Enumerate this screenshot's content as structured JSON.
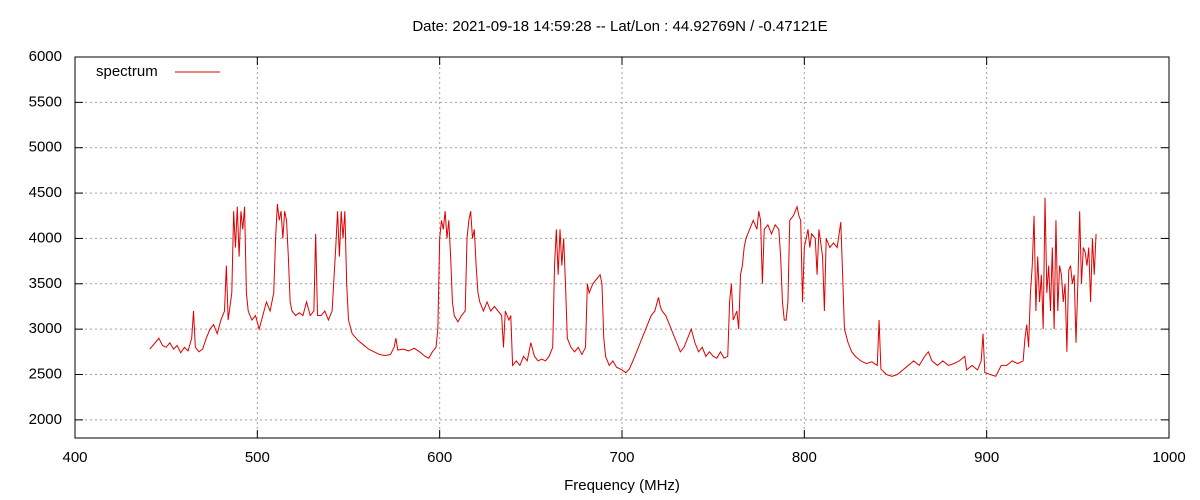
{
  "chart_data": {
    "type": "line",
    "title": "Date: 2021-09-18 14:59:28  --  Lat/Lon : 44.92769N / -0.47121E",
    "x_label": "Frequency (MHz)",
    "xlim": [
      400,
      1000
    ],
    "xticks": [
      400,
      500,
      600,
      700,
      800,
      900,
      1000
    ],
    "ylim": [
      1800,
      6000
    ],
    "yticks": [
      2000,
      2500,
      3000,
      3500,
      4000,
      4500,
      5000,
      5500,
      6000
    ],
    "grid": true,
    "legend": "top-left",
    "x": [
      441,
      444,
      446,
      448,
      450,
      452,
      454,
      456,
      458,
      460,
      462,
      464,
      465,
      466,
      468,
      470,
      472,
      474,
      476,
      478,
      480,
      482,
      483,
      484,
      486,
      487,
      488,
      489,
      490,
      491,
      492,
      493,
      494,
      495,
      497,
      499,
      501,
      503,
      505,
      507,
      509,
      510,
      511,
      512,
      513,
      514,
      515,
      516,
      517,
      518,
      519,
      521,
      523,
      525,
      527,
      529,
      531,
      532,
      533,
      535,
      537,
      539,
      541,
      543,
      544,
      545,
      546,
      547,
      548,
      549,
      550,
      552,
      555,
      558,
      561,
      564,
      567,
      570,
      573,
      575,
      576,
      577,
      580,
      583,
      586,
      589,
      592,
      594,
      596,
      598,
      599,
      600,
      601,
      602,
      603,
      604,
      605,
      606,
      607,
      608,
      610,
      612,
      614,
      615,
      616,
      617,
      618,
      619,
      620,
      621,
      622,
      624,
      626,
      628,
      630,
      632,
      634,
      635,
      636,
      638,
      639,
      640,
      642,
      644,
      646,
      648,
      650,
      652,
      654,
      656,
      658,
      660,
      662,
      663,
      664,
      665,
      666,
      667,
      668,
      669,
      670,
      672,
      674,
      676,
      678,
      680,
      681,
      682,
      684,
      686,
      688,
      689,
      690,
      691,
      693,
      695,
      697,
      700,
      702,
      704,
      706,
      708,
      710,
      712,
      714,
      716,
      718,
      720,
      721,
      722,
      724,
      726,
      728,
      730,
      732,
      734,
      736,
      738,
      740,
      742,
      744,
      746,
      748,
      750,
      752,
      754,
      756,
      758,
      759,
      760,
      761,
      763,
      764,
      765,
      766,
      767,
      768,
      770,
      772,
      774,
      775,
      776,
      777,
      778,
      780,
      782,
      784,
      786,
      787,
      788,
      789,
      790,
      791,
      792,
      794,
      795,
      796,
      797,
      798,
      799,
      800,
      802,
      803,
      804,
      806,
      807,
      808,
      810,
      811,
      812,
      814,
      816,
      818,
      820,
      821,
      822,
      824,
      826,
      828,
      831,
      834,
      837,
      840,
      841,
      842,
      845,
      848,
      851,
      854,
      857,
      860,
      863,
      866,
      868,
      870,
      873,
      876,
      879,
      882,
      885,
      888,
      889,
      892,
      895,
      897,
      898,
      899,
      902,
      905,
      908,
      911,
      914,
      917,
      920,
      921,
      922,
      923,
      924,
      925,
      926,
      927,
      928,
      929,
      930,
      931,
      932,
      933,
      934,
      935,
      936,
      937,
      938,
      939,
      940,
      941,
      942,
      943,
      944,
      945,
      946,
      947,
      948,
      949,
      950,
      951,
      952,
      953,
      954,
      955,
      956,
      957,
      958,
      959,
      960
    ],
    "series": [
      {
        "name": "spectrum",
        "color": "#e00000",
        "values": [
          2780,
          2850,
          2900,
          2820,
          2800,
          2850,
          2780,
          2820,
          2740,
          2800,
          2760,
          2900,
          3200,
          2800,
          2750,
          2780,
          2900,
          3000,
          3050,
          2950,
          3100,
          3200,
          3700,
          3100,
          3400,
          4300,
          3900,
          4350,
          3800,
          4300,
          4100,
          4350,
          3400,
          3200,
          3100,
          3150,
          3000,
          3150,
          3300,
          3200,
          3400,
          4000,
          4380,
          4200,
          4300,
          4000,
          4300,
          4200,
          3800,
          3300,
          3200,
          3150,
          3180,
          3150,
          3300,
          3150,
          3200,
          4050,
          3150,
          3150,
          3200,
          3100,
          3200,
          3900,
          4300,
          3800,
          4300,
          4000,
          4300,
          3500,
          3100,
          2950,
          2880,
          2830,
          2780,
          2750,
          2720,
          2710,
          2720,
          2800,
          2900,
          2770,
          2780,
          2760,
          2790,
          2750,
          2700,
          2680,
          2750,
          2800,
          3000,
          4000,
          4200,
          4100,
          4300,
          4000,
          4200,
          3800,
          3300,
          3150,
          3080,
          3150,
          3200,
          4000,
          4200,
          4300,
          4000,
          4100,
          3700,
          3400,
          3300,
          3200,
          3300,
          3200,
          3250,
          3200,
          3150,
          2800,
          3200,
          3100,
          3150,
          2600,
          2650,
          2600,
          2700,
          2650,
          2850,
          2700,
          2650,
          2670,
          2650,
          2700,
          2800,
          3700,
          4100,
          3600,
          4100,
          3700,
          4000,
          3500,
          2900,
          2800,
          2750,
          2800,
          2720,
          2800,
          3500,
          3400,
          3500,
          3550,
          3600,
          3500,
          2900,
          2700,
          2600,
          2650,
          2580,
          2550,
          2520,
          2560,
          2650,
          2750,
          2850,
          2950,
          3050,
          3150,
          3200,
          3350,
          3250,
          3200,
          3150,
          3050,
          2950,
          2850,
          2750,
          2800,
          2900,
          3000,
          2850,
          2750,
          2800,
          2700,
          2750,
          2700,
          2680,
          2750,
          2680,
          2700,
          3300,
          3500,
          3100,
          3200,
          3000,
          3600,
          3700,
          3900,
          4000,
          4100,
          4200,
          4100,
          4300,
          4200,
          3500,
          4100,
          4150,
          4050,
          4150,
          4100,
          3800,
          3300,
          3100,
          3100,
          3300,
          4200,
          4250,
          4300,
          4350,
          4250,
          4200,
          3300,
          3900,
          4100,
          3900,
          4050,
          4000,
          3600,
          4100,
          3800,
          3200,
          4000,
          3900,
          3950,
          3900,
          4180,
          3600,
          3000,
          2850,
          2750,
          2700,
          2650,
          2620,
          2640,
          2600,
          3100,
          2560,
          2500,
          2480,
          2500,
          2550,
          2600,
          2650,
          2600,
          2700,
          2750,
          2650,
          2600,
          2650,
          2600,
          2620,
          2650,
          2700,
          2550,
          2600,
          2550,
          2650,
          2950,
          2520,
          2500,
          2480,
          2600,
          2600,
          2650,
          2620,
          2650,
          2900,
          3050,
          2800,
          3400,
          3700,
          4250,
          3200,
          3800,
          3300,
          3600,
          3000,
          4450,
          3400,
          3700,
          3200,
          3900,
          3000,
          4200,
          3200,
          3700,
          3600,
          3300,
          3500,
          2750,
          3650,
          3700,
          3500,
          3600,
          2850,
          3500,
          4300,
          3500,
          3900,
          3850,
          3700,
          3900,
          3300,
          4000,
          3600,
          4050
        ]
      }
    ]
  }
}
